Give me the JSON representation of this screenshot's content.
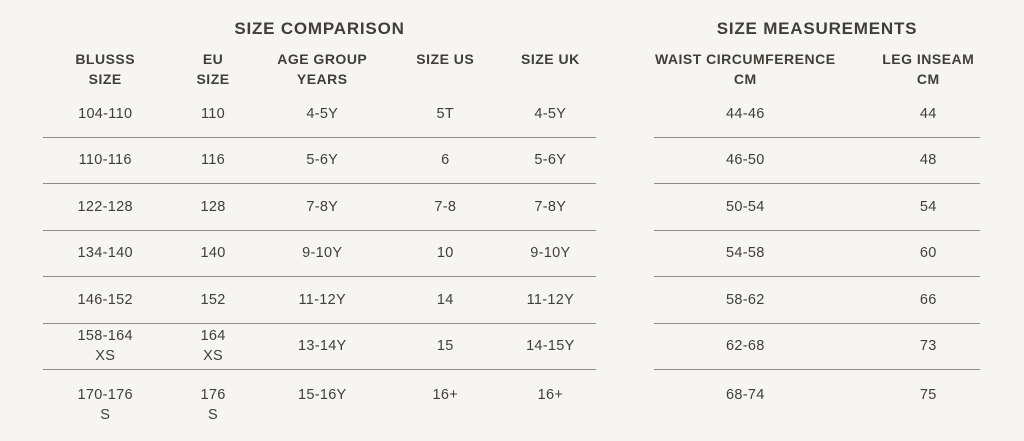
{
  "theme": {
    "background": "#f7f5f1",
    "text": "#3f3e39",
    "divider": "#8e8c84"
  },
  "size_comparison": {
    "title": "SIZE COMPARISON",
    "column_headers": [
      "BLUSSS\nSIZE",
      "EU\nSIZE",
      "AGE GROUP\nYEARS",
      "SIZE US",
      "SIZE UK"
    ],
    "rows": [
      [
        "104-110",
        "110",
        "4-5Y",
        "5T",
        "4-5Y"
      ],
      [
        "110-116",
        "116",
        "5-6Y",
        "6",
        "5-6Y"
      ],
      [
        "122-128",
        "128",
        "7-8Y",
        "7-8",
        "7-8Y"
      ],
      [
        "134-140",
        "140",
        "9-10Y",
        "10",
        "9-10Y"
      ],
      [
        "146-152",
        "152",
        "11-12Y",
        "14",
        "11-12Y"
      ],
      [
        "158-164\nXS",
        "164\nXS",
        "13-14Y",
        "15",
        "14-15Y"
      ],
      [
        "170-176\nS",
        "176\nS",
        "15-16Y",
        "16+",
        "16+"
      ]
    ]
  },
  "size_measurements": {
    "title": "SIZE MEASUREMENTS",
    "column_headers": [
      "WAIST CIRCUMFERENCE\nCM",
      "LEG INSEAM\nCM"
    ],
    "rows": [
      [
        "44-46",
        "44"
      ],
      [
        "46-50",
        "48"
      ],
      [
        "50-54",
        "54"
      ],
      [
        "54-58",
        "60"
      ],
      [
        "58-62",
        "66"
      ],
      [
        "62-68",
        "73"
      ],
      [
        "68-74",
        "75"
      ]
    ]
  }
}
